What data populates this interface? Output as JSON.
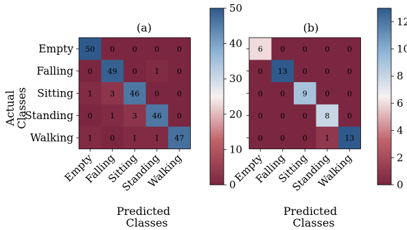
{
  "chart_data": [
    {
      "type": "heatmap",
      "panel_label": "(a)",
      "row_categories": [
        "Empty",
        "Falling",
        "Sitting",
        "Standing",
        "Walking"
      ],
      "col_categories": [
        "Empty",
        "Falling",
        "Sitting",
        "Standing",
        "Walking"
      ],
      "ylabel_lines": [
        "Actual",
        "Classes"
      ],
      "xlabel_lines": [
        "Predicted",
        "Classes"
      ],
      "values": [
        [
          50,
          0,
          0,
          0,
          0
        ],
        [
          0,
          49,
          0,
          1,
          0
        ],
        [
          1,
          3,
          46,
          0,
          0
        ],
        [
          0,
          1,
          3,
          46,
          0
        ],
        [
          1,
          0,
          1,
          1,
          47
        ]
      ],
      "colorbar": {
        "range": [
          0,
          50
        ],
        "ticks": [
          0,
          10,
          20,
          30,
          40,
          50
        ]
      }
    },
    {
      "type": "heatmap",
      "panel_label": "(b)",
      "row_categories": [
        "Empty",
        "Falling",
        "Sitting",
        "Standing",
        "Walking"
      ],
      "col_categories": [
        "Empty",
        "Falling",
        "Sitting",
        "Standing",
        "Walking"
      ],
      "xlabel_lines": [
        "Predicted",
        "Classes"
      ],
      "values": [
        [
          6,
          0,
          0,
          0,
          0
        ],
        [
          0,
          13,
          0,
          0,
          0
        ],
        [
          0,
          0,
          9,
          0,
          0
        ],
        [
          0,
          0,
          0,
          8,
          0
        ],
        [
          0,
          0,
          0,
          1,
          13
        ]
      ],
      "colorbar": {
        "range": [
          0,
          13
        ],
        "ticks": [
          0,
          2,
          4,
          6,
          8,
          10,
          12
        ]
      }
    }
  ],
  "colormap": {
    "name": "twilight-like diverging",
    "stops": [
      "#7b2741",
      "#c0626a",
      "#f7f1f1",
      "#8fb5d6",
      "#2f5a8b"
    ]
  }
}
